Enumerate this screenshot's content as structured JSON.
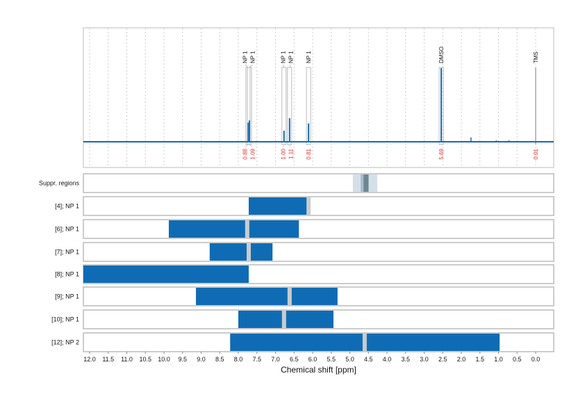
{
  "chart_data": {
    "type": "nmr-spectrum",
    "xlabel": "Chemical shift [ppm]",
    "xlim": [
      12.17,
      -0.49
    ],
    "x_reversed": true,
    "x_ticks": [
      "12.0",
      "11.5",
      "11.0",
      "10.5",
      "10.0",
      "9.5",
      "9.0",
      "8.5",
      "8.0",
      "7.5",
      "7.0",
      "6.5",
      "6.0",
      "5.5",
      "5.0",
      "4.5",
      "4.0",
      "3.5",
      "3.0",
      "2.5",
      "2.0",
      "1.5",
      "1.0",
      "0.5",
      "0.0"
    ],
    "grid": "vertical dotted",
    "line_color": "#0f6cb4",
    "integral_color": "#e8292b",
    "peaks": [
      {
        "label": "NP 1",
        "ppm": 7.74,
        "height": 0.26,
        "integral": "0.88"
      },
      {
        "label": "NP 1",
        "ppm": 7.7,
        "height": 0.29,
        "integral": "1.09"
      },
      {
        "label": "NP 1",
        "ppm": 6.77,
        "height": 0.15,
        "integral": "1.00"
      },
      {
        "label": "NP 1",
        "ppm": 6.62,
        "height": 0.32,
        "integral": "1.11"
      },
      {
        "label": "NP 1",
        "ppm": 6.11,
        "height": 0.25,
        "integral": "0.81"
      },
      {
        "label": "DMSO",
        "ppm": 2.54,
        "height": 1.0,
        "integral": "5.69"
      },
      {
        "label": "TMS",
        "ppm": 0.0,
        "height": 0.0,
        "integral": "0.01"
      }
    ],
    "minor_peaks": [
      [
        1.74,
        0.06
      ],
      [
        1.06,
        0.02
      ],
      [
        0.72,
        0.02
      ]
    ],
    "rows": [
      {
        "label": "Suppr. regions",
        "type": "suppressed",
        "range": [
          4.92,
          4.26
        ],
        "core": [
          4.71,
          4.49
        ]
      },
      {
        "label": "[4]; NP 1",
        "range": [
          7.72,
          6.06
        ],
        "marks": [
          6.11
        ]
      },
      {
        "label": "[6]; NP 1",
        "range": [
          9.87,
          6.37
        ],
        "marks": [
          7.76
        ]
      },
      {
        "label": "[7]; NP 1",
        "range": [
          8.77,
          7.08
        ],
        "marks": [
          7.72
        ]
      },
      {
        "label": "[8]; NP 1",
        "range": [
          12.17,
          7.72
        ],
        "marks": []
      },
      {
        "label": "[9]; NP 1",
        "range": [
          9.14,
          5.33
        ],
        "marks": [
          6.62
        ]
      },
      {
        "label": "[10]; NP 1",
        "range": [
          8.0,
          5.44
        ],
        "marks": [
          6.77
        ]
      },
      {
        "label": "[12]; NP 2",
        "range": [
          8.22,
          0.97
        ],
        "marks": [
          4.6
        ]
      }
    ]
  }
}
